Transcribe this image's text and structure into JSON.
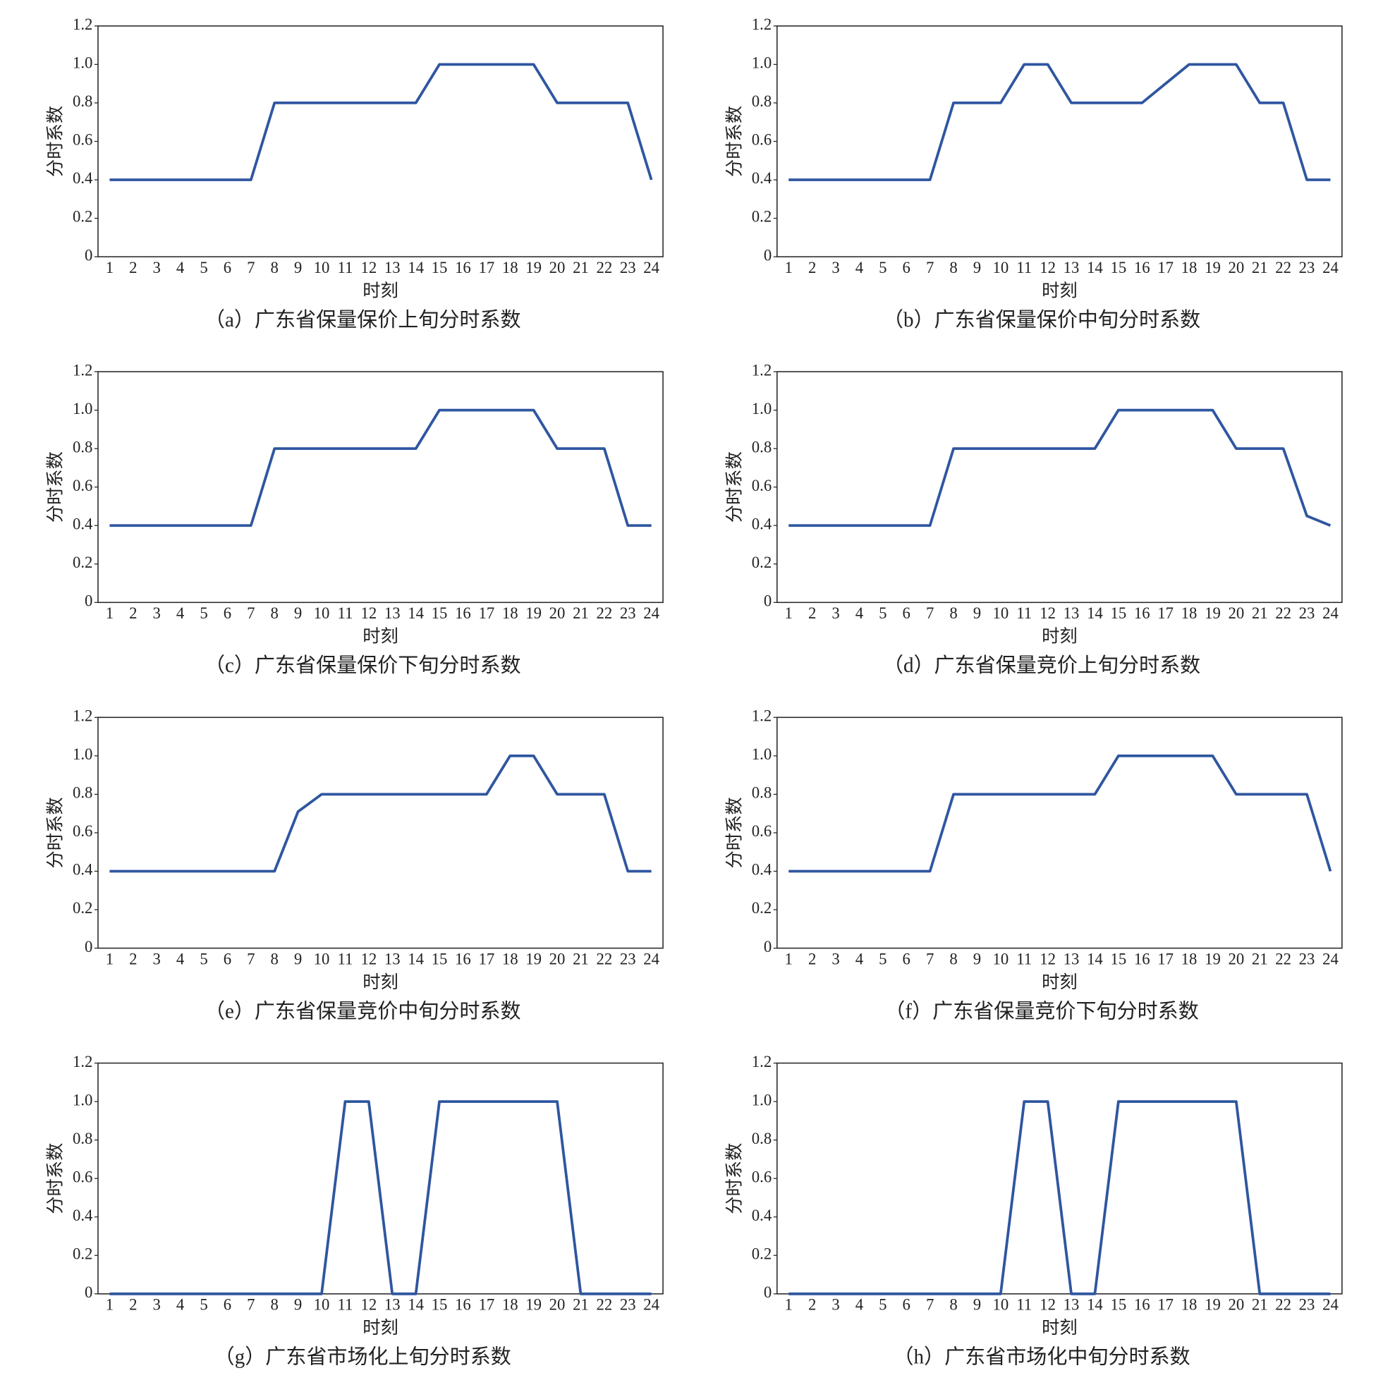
{
  "chart_data": [
    {
      "type": "line",
      "title": "（a）广东省保量保价上旬分时系数",
      "xlabel": "时刻",
      "ylabel": "分时系数",
      "categories": [
        "1",
        "2",
        "3",
        "4",
        "5",
        "6",
        "7",
        "8",
        "9",
        "10",
        "11",
        "12",
        "13",
        "14",
        "15",
        "16",
        "17",
        "18",
        "19",
        "20",
        "21",
        "22",
        "23",
        "24"
      ],
      "values": [
        0.4,
        0.4,
        0.4,
        0.4,
        0.4,
        0.4,
        0.4,
        0.8,
        0.8,
        0.8,
        0.8,
        0.8,
        0.8,
        0.8,
        1.0,
        1.0,
        1.0,
        1.0,
        1.0,
        0.8,
        0.8,
        0.8,
        0.8,
        0.4
      ],
      "color": "#2f56a0",
      "ylim": [
        0,
        1.2
      ],
      "yticks": [
        0,
        0.2,
        0.4,
        0.6,
        0.8,
        {
          "value": 1.0,
          "label": "1.0"
        },
        1.2
      ]
    },
    {
      "type": "line",
      "title": "（b）广东省保量保价中旬分时系数",
      "xlabel": "时刻",
      "ylabel": "分时系数",
      "categories": [
        "1",
        "2",
        "3",
        "4",
        "5",
        "6",
        "7",
        "8",
        "9",
        "10",
        "11",
        "12",
        "13",
        "14",
        "15",
        "16",
        "17",
        "18",
        "19",
        "20",
        "21",
        "22",
        "23",
        "24"
      ],
      "values": [
        0.4,
        0.4,
        0.4,
        0.4,
        0.4,
        0.4,
        0.4,
        0.8,
        0.8,
        0.8,
        1.0,
        1.0,
        0.8,
        0.8,
        0.8,
        0.8,
        0.9,
        1.0,
        1.0,
        1.0,
        0.8,
        0.8,
        0.4,
        0.4
      ],
      "color": "#2f56a0",
      "ylim": [
        0,
        1.2
      ],
      "yticks": [
        0,
        0.2,
        0.4,
        0.6,
        0.8,
        {
          "value": 1.0,
          "label": "1.0"
        },
        1.2
      ]
    },
    {
      "type": "line",
      "title": "（c）广东省保量保价下旬分时系数",
      "xlabel": "时刻",
      "ylabel": "分时系数",
      "categories": [
        "1",
        "2",
        "3",
        "4",
        "5",
        "6",
        "7",
        "8",
        "9",
        "10",
        "11",
        "12",
        "13",
        "14",
        "15",
        "16",
        "17",
        "18",
        "19",
        "20",
        "21",
        "22",
        "23",
        "24"
      ],
      "values": [
        0.4,
        0.4,
        0.4,
        0.4,
        0.4,
        0.4,
        0.4,
        0.8,
        0.8,
        0.8,
        0.8,
        0.8,
        0.8,
        0.8,
        1.0,
        1.0,
        1.0,
        1.0,
        1.0,
        0.8,
        0.8,
        0.8,
        0.4,
        0.4
      ],
      "color": "#2f56a0",
      "ylim": [
        0,
        1.2
      ],
      "yticks": [
        0,
        0.2,
        0.4,
        0.6,
        0.8,
        {
          "value": 1.0,
          "label": "1.0"
        },
        1.2
      ]
    },
    {
      "type": "line",
      "title": "（d）广东省保量竞价上旬分时系数",
      "xlabel": "时刻",
      "ylabel": "分时系数",
      "categories": [
        "1",
        "2",
        "3",
        "4",
        "5",
        "6",
        "7",
        "8",
        "9",
        "10",
        "11",
        "12",
        "13",
        "14",
        "15",
        "16",
        "17",
        "18",
        "19",
        "20",
        "21",
        "22",
        "23",
        "24"
      ],
      "values": [
        0.4,
        0.4,
        0.4,
        0.4,
        0.4,
        0.4,
        0.4,
        0.8,
        0.8,
        0.8,
        0.8,
        0.8,
        0.8,
        0.8,
        1.0,
        1.0,
        1.0,
        1.0,
        1.0,
        0.8,
        0.8,
        0.8,
        0.45,
        0.4
      ],
      "color": "#2f56a0",
      "ylim": [
        0,
        1.2
      ],
      "yticks": [
        0,
        0.2,
        0.4,
        0.6,
        0.8,
        {
          "value": 1.0,
          "label": "1.0"
        },
        1.2
      ]
    },
    {
      "type": "line",
      "title": "（e）广东省保量竞价中旬分时系数",
      "xlabel": "时刻",
      "ylabel": "分时系数",
      "categories": [
        "1",
        "2",
        "3",
        "4",
        "5",
        "6",
        "7",
        "8",
        "9",
        "10",
        "11",
        "12",
        "13",
        "14",
        "15",
        "16",
        "17",
        "18",
        "19",
        "20",
        "21",
        "22",
        "23",
        "24"
      ],
      "values": [
        0.4,
        0.4,
        0.4,
        0.4,
        0.4,
        0.4,
        0.4,
        0.4,
        0.71,
        0.8,
        0.8,
        0.8,
        0.8,
        0.8,
        0.8,
        0.8,
        0.8,
        1.0,
        1.0,
        0.8,
        0.8,
        0.8,
        0.4,
        0.4
      ],
      "color": "#2f56a0",
      "ylim": [
        0,
        1.2
      ],
      "yticks": [
        0,
        0.2,
        0.4,
        0.6,
        0.8,
        {
          "value": 1.0,
          "label": "1.0"
        },
        1.2
      ]
    },
    {
      "type": "line",
      "title": "（f）广东省保量竞价下旬分时系数",
      "xlabel": "时刻",
      "ylabel": "分时系数",
      "categories": [
        "1",
        "2",
        "3",
        "4",
        "5",
        "6",
        "7",
        "8",
        "9",
        "10",
        "11",
        "12",
        "13",
        "14",
        "15",
        "16",
        "17",
        "18",
        "19",
        "20",
        "21",
        "22",
        "23",
        "24"
      ],
      "values": [
        0.4,
        0.4,
        0.4,
        0.4,
        0.4,
        0.4,
        0.4,
        0.8,
        0.8,
        0.8,
        0.8,
        0.8,
        0.8,
        0.8,
        1.0,
        1.0,
        1.0,
        1.0,
        1.0,
        0.8,
        0.8,
        0.8,
        0.8,
        0.4
      ],
      "color": "#2f56a0",
      "ylim": [
        0,
        1.2
      ],
      "yticks": [
        0,
        0.2,
        0.4,
        0.6,
        0.8,
        {
          "value": 1.0,
          "label": "1.0"
        },
        1.2
      ]
    },
    {
      "type": "line",
      "title": "（g）广东省市场化上旬分时系数",
      "xlabel": "时刻",
      "ylabel": "分时系数",
      "categories": [
        "1",
        "2",
        "3",
        "4",
        "5",
        "6",
        "7",
        "8",
        "9",
        "10",
        "11",
        "12",
        "13",
        "14",
        "15",
        "16",
        "17",
        "18",
        "19",
        "20",
        "21",
        "22",
        "23",
        "24"
      ],
      "values": [
        0,
        0,
        0,
        0,
        0,
        0,
        0,
        0,
        0,
        0,
        1,
        1,
        0,
        0,
        1,
        1,
        1,
        1,
        1,
        1,
        0,
        0,
        0,
        0
      ],
      "color": "#2f56a0",
      "ylim": [
        0,
        1.2
      ],
      "yticks": [
        0,
        0.2,
        0.4,
        0.6,
        0.8,
        {
          "value": 1.0,
          "label": "1.0"
        },
        1.2
      ]
    },
    {
      "type": "line",
      "title": "（h）广东省市场化中旬分时系数",
      "xlabel": "时刻",
      "ylabel": "分时系数",
      "categories": [
        "1",
        "2",
        "3",
        "4",
        "5",
        "6",
        "7",
        "8",
        "9",
        "10",
        "11",
        "12",
        "13",
        "14",
        "15",
        "16",
        "17",
        "18",
        "19",
        "20",
        "21",
        "22",
        "23",
        "24"
      ],
      "values": [
        0,
        0,
        0,
        0,
        0,
        0,
        0,
        0,
        0,
        0,
        1,
        1,
        0,
        0,
        1,
        1,
        1,
        1,
        1,
        1,
        0,
        0,
        0,
        0
      ],
      "color": "#2f56a0",
      "ylim": [
        0,
        1.2
      ],
      "yticks": [
        0,
        0.2,
        0.4,
        0.6,
        0.8,
        {
          "value": 1.0,
          "label": "1.0"
        },
        1.2
      ]
    }
  ]
}
